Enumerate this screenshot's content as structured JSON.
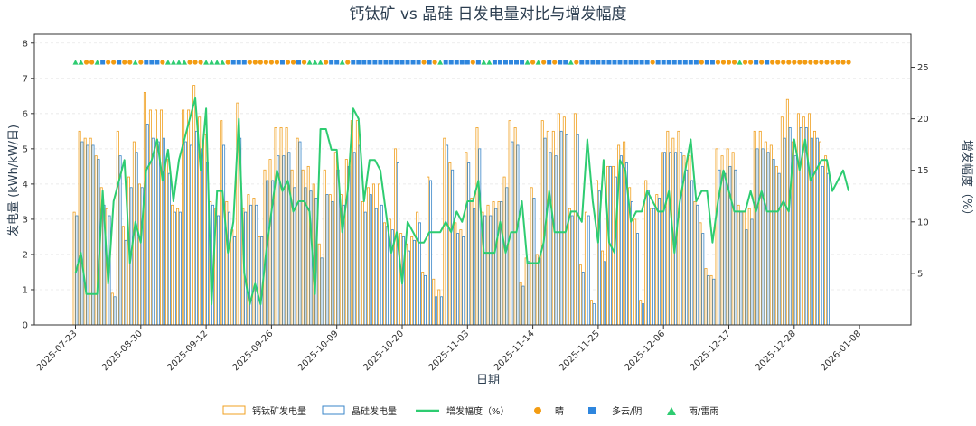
{
  "chart_data": {
    "type": "bar",
    "title": "钙钛矿 vs 晶硅 日发电量对比与增发幅度",
    "xlabel": "日期",
    "ylabel": "发电量 (kWh/kW/日)",
    "y2label": "增发幅度（%）",
    "ylim": [
      0,
      8.25
    ],
    "y2lim": [
      0,
      28.2
    ],
    "yticks": [
      0,
      1,
      2,
      3,
      4,
      5,
      6,
      7,
      8
    ],
    "y2ticks": [
      5,
      10,
      15,
      20,
      25
    ],
    "date_ticks": [
      "2025-07-23",
      "2025-08-30",
      "2025-09-12",
      "2025-09-26",
      "2025-10-09",
      "2025-10-20",
      "2025-11-03",
      "2025-11-14",
      "2025-11-25",
      "2025-12-06",
      "2025-12-17",
      "2025-12-28",
      "2026-01-08"
    ],
    "tick_positions": [
      0,
      12,
      24,
      36,
      48,
      60,
      72,
      84,
      96,
      108,
      120,
      132,
      144
    ],
    "grid": "horizontal",
    "legend_position": "bottom",
    "legend": [
      "钙钛矿发电量",
      "晶硅发电量",
      "增发幅度（%）",
      "晴",
      "多云/阴",
      "雨/雷雨"
    ],
    "series": [
      {
        "name": "钙钛矿发电量",
        "values": [
          3.2,
          5.5,
          5.3,
          5.3,
          4.8,
          3.9,
          3.3,
          0.9,
          5.5,
          2.8,
          4.2,
          5.2,
          4.0,
          6.6,
          6.1,
          6.1,
          6.1,
          4.7,
          3.4,
          3.3,
          6.1,
          6.1,
          6.8,
          5.9,
          5.4,
          3.5,
          3.3,
          5.8,
          3.5,
          2.7,
          6.3,
          3.3,
          3.7,
          3.6,
          2.5,
          4.4,
          4.7,
          5.6,
          5.6,
          5.6,
          4.4,
          5.3,
          4.4,
          4.5,
          4.0,
          2.3,
          4.4,
          3.7,
          4.9,
          3.7,
          4.7,
          5.8,
          5.8,
          3.5,
          3.9,
          4.0,
          4.0,
          2.9,
          3.0,
          5.0,
          2.6,
          2.3,
          2.5,
          3.2,
          1.5,
          4.2,
          1.3,
          1.0,
          5.3,
          4.6,
          2.9,
          2.7,
          4.9,
          3.6,
          5.6,
          3.2,
          3.4,
          3.5,
          3.5,
          4.2,
          5.8,
          5.6,
          1.2,
          1.9,
          3.9,
          2.0,
          5.8,
          5.5,
          5.5,
          6.0,
          5.9,
          3.3,
          6.0,
          1.7,
          3.2,
          0.7,
          4.1,
          2.1,
          4.5,
          4.5,
          5.1,
          5.2,
          3.9,
          3.0,
          0.7,
          4.1,
          3.3,
          3.7,
          4.9,
          5.5,
          5.3,
          5.5,
          4.8,
          4.8,
          3.5,
          2.9,
          1.6,
          1.4,
          5.0,
          4.8,
          5.0,
          4.9,
          3.4,
          3.2,
          3.3,
          5.5,
          5.5,
          5.2,
          5.1,
          4.5,
          5.9,
          6.4,
          5.2,
          6.0,
          5.9,
          6.0,
          5.5,
          5.2,
          4.8
        ]
      },
      {
        "name": "晶硅发电量",
        "values": [
          3.1,
          5.2,
          5.1,
          5.1,
          4.7,
          3.4,
          3.1,
          0.8,
          4.8,
          2.4,
          3.9,
          4.9,
          3.9,
          5.7,
          5.3,
          5.2,
          5.3,
          4.3,
          3.2,
          3.2,
          5.2,
          5.1,
          5.5,
          5.0,
          4.6,
          3.4,
          3.1,
          5.1,
          3.2,
          2.5,
          5.3,
          3.2,
          3.4,
          3.4,
          2.5,
          4.1,
          4.1,
          4.8,
          4.8,
          4.9,
          3.9,
          5.2,
          3.9,
          3.8,
          3.6,
          1.9,
          3.7,
          3.5,
          4.4,
          3.4,
          4.5,
          4.9,
          5.1,
          3.2,
          3.7,
          3.3,
          3.4,
          2.8,
          2.7,
          4.6,
          2.5,
          2.1,
          2.4,
          2.9,
          1.4,
          4.1,
          0.8,
          0.8,
          5.1,
          4.4,
          2.6,
          2.5,
          4.6,
          3.3,
          5.0,
          3.1,
          3.1,
          3.3,
          3.5,
          3.9,
          5.2,
          5.1,
          1.1,
          1.8,
          3.6,
          1.9,
          5.3,
          4.9,
          4.8,
          5.5,
          5.4,
          3.1,
          5.4,
          1.5,
          3.1,
          0.6,
          3.8,
          1.8,
          4.5,
          4.2,
          4.8,
          4.6,
          3.5,
          2.6,
          0.6,
          3.8,
          3.3,
          3.6,
          4.9,
          4.9,
          4.9,
          4.9,
          4.4,
          4.1,
          3.4,
          2.6,
          1.4,
          1.3,
          4.4,
          4.3,
          4.5,
          4.4,
          3.2,
          2.7,
          3.0,
          5.0,
          5.0,
          4.9,
          4.7,
          4.3,
          5.3,
          5.6,
          4.8,
          5.6,
          5.6,
          5.3,
          5.3,
          4.5,
          4.3
        ]
      },
      {
        "name": "增发幅度（%）",
        "values": [
          5,
          7,
          3,
          3,
          3,
          13,
          4,
          12,
          14,
          16,
          6,
          10,
          8,
          15,
          16,
          18,
          14,
          17,
          12,
          16,
          18,
          20,
          22,
          15,
          21,
          2,
          13,
          13,
          7,
          10,
          20,
          5,
          2,
          4,
          2,
          7,
          11,
          15,
          13,
          14,
          11,
          12,
          12,
          11,
          3,
          19,
          19,
          17,
          17,
          9,
          13,
          21,
          20,
          12,
          16,
          16,
          15,
          11,
          7,
          9,
          4,
          10,
          9,
          8,
          8,
          9,
          9,
          9,
          10,
          9,
          11,
          10,
          12,
          12,
          14,
          7,
          7,
          7,
          10,
          7,
          9,
          9,
          12,
          6,
          6,
          6,
          8,
          13,
          9,
          9,
          9,
          11,
          11,
          10,
          18,
          12,
          8,
          16,
          8,
          7,
          16,
          15,
          10,
          11,
          11,
          13,
          12,
          11,
          11,
          13,
          7,
          12,
          15,
          18,
          12,
          13,
          13,
          8,
          12,
          15,
          13,
          11,
          11,
          11,
          13,
          11,
          13,
          11,
          11,
          11,
          12,
          11,
          18,
          15,
          18,
          14,
          15,
          16,
          16,
          13,
          14,
          15,
          13
        ]
      }
    ],
    "weather": [
      "雨/雷雨",
      "雨/雷雨",
      "晴",
      "晴",
      "雨/雷雨",
      "多云/阴",
      "晴",
      "晴",
      "多云/阴",
      "晴",
      "晴",
      "雨/雷雨",
      "晴",
      "多云/阴",
      "多云/阴",
      "多云/阴",
      "晴",
      "雨/雷雨",
      "雨/雷雨",
      "雨/雷雨",
      "雨/雷雨",
      "晴",
      "晴",
      "晴",
      "雨/雷雨",
      "雨/雷雨",
      "雨/雷雨",
      "雨/雷雨",
      "晴",
      "多云/阴",
      "多云/阴",
      "多云/阴",
      "晴",
      "晴",
      "晴",
      "晴",
      "晴",
      "晴",
      "多云/阴",
      "晴",
      "晴",
      "多云/阴",
      "晴",
      "雨/雷雨",
      "雨/雷雨",
      "雨/雷雨",
      "晴",
      "多云/阴",
      "多云/阴",
      "雨/雷雨",
      "晴",
      "多云/阴",
      "多云/阴",
      "多云/阴",
      "多云/阴",
      "多云/阴",
      "多云/阴",
      "多云/阴",
      "多云/阴",
      "多云/阴",
      "多云/阴",
      "多云/阴",
      "多云/阴",
      "多云/阴",
      "晴",
      "多云/阴",
      "晴",
      "雨/雷雨",
      "多云/阴",
      "多云/阴",
      "多云/阴",
      "多云/阴",
      "多云/阴",
      "晴",
      "多云/阴",
      "雨/雷雨",
      "雨/雷雨",
      "多云/阴",
      "多云/阴",
      "多云/阴",
      "多云/阴",
      "多云/阴",
      "多云/阴",
      "雨/雷雨",
      "晴",
      "雨/雷雨",
      "晴",
      "多云/阴",
      "晴",
      "多云/阴",
      "多云/阴",
      "雨/雷雨",
      "晴",
      "多云/阴",
      "多云/阴",
      "多云/阴",
      "多云/阴",
      "多云/阴",
      "多云/阴",
      "多云/阴",
      "多云/阴",
      "多云/阴",
      "多云/阴",
      "多云/阴",
      "多云/阴",
      "多云/阴",
      "晴",
      "多云/阴",
      "多云/阴",
      "多云/阴",
      "多云/阴",
      "多云/阴",
      "多云/阴",
      "多云/阴",
      "多云/阴",
      "晴",
      "多云/阴",
      "多云/阴",
      "晴",
      "晴",
      "晴",
      "晴",
      "雨/雷雨",
      "晴",
      "晴",
      "多云/阴",
      "晴",
      "多云/阴",
      "晴",
      "晴",
      "晴",
      "晴",
      "晴",
      "晴",
      "晴",
      "晴",
      "晴",
      "晴",
      "晴",
      "晴",
      "晴",
      "晴",
      "晴"
    ],
    "colors": {
      "perovskite": "#f0a020",
      "silicon": "#3a86c8",
      "boost": "#2ecc71",
      "sunny": "#f39c12",
      "cloudy": "#2e86de",
      "rain": "#2ecc71",
      "axis": "#333333",
      "grid": "#e6e6e6",
      "title": "#2c3e50"
    }
  }
}
